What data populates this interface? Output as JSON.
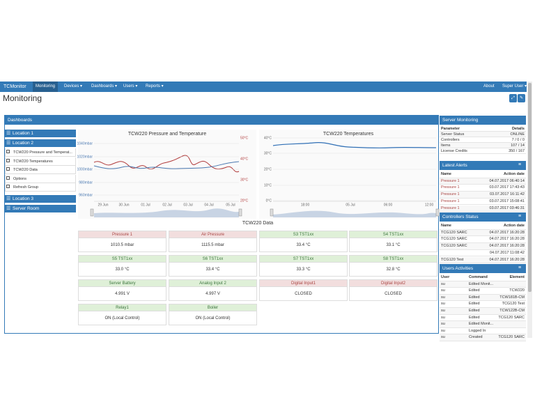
{
  "navbar": {
    "brand": "TCMonitor",
    "items": [
      "Monitoring",
      "Devices ▾",
      "Dashboards ▾",
      "Users ▾",
      "Reports ▾"
    ],
    "right": [
      "About",
      "Super User ▾"
    ]
  },
  "page_title": "Monitoring",
  "dashboards": {
    "title": "Dashboards",
    "sidebar": [
      {
        "label": "Location 1"
      },
      {
        "label": "Location 2",
        "children": [
          "TCW220 Pressure and Temperat...",
          "TCW220 Temperatures",
          "TCW220 Data",
          "Options",
          "Refresh Group"
        ]
      },
      {
        "label": "Location 3"
      },
      {
        "label": "Server Room"
      }
    ]
  },
  "charts": [
    {
      "title": "TCW220 Pressure and Temperature",
      "y_left": [
        "1040mbar",
        "1020mbar",
        "1000mbar",
        "980mbar",
        "960mbar"
      ],
      "y_right": [
        "50°C",
        "40°C",
        "30°C",
        "20°C"
      ],
      "x": [
        "29 Jun",
        "30 Jun",
        "01 Jul",
        "02 Jul",
        "03 Jul",
        "04 Jul",
        "05 Jul"
      ]
    },
    {
      "title": "TCW220 Temperatures",
      "y_left": [
        "40°C",
        "30°C",
        "20°C",
        "10°C",
        "0°C"
      ],
      "x": [
        "18:00",
        "05 Jul",
        "06:00",
        "12:00"
      ]
    }
  ],
  "data_title": "TCW220 Data",
  "tiles": [
    {
      "label": "Pressure 1",
      "value": "1010.5 mbar",
      "alarm": true
    },
    {
      "label": "Air Pressure",
      "value": "1115.5 mbar",
      "alarm": true
    },
    {
      "label": "S3 TST1xx",
      "value": "33.4 °C",
      "alarm": false
    },
    {
      "label": "S4 TST1xx",
      "value": "33.1 °C",
      "alarm": false
    },
    {
      "label": "S5 TST1xx",
      "value": "33.0 °C",
      "alarm": false
    },
    {
      "label": "S6 TST1xx",
      "value": "33.4 °C",
      "alarm": false
    },
    {
      "label": "S7 TST1xx",
      "value": "33.3 °C",
      "alarm": false
    },
    {
      "label": "S8 TST1xx",
      "value": "32.8 °C",
      "alarm": false
    },
    {
      "label": "Server Battery",
      "value": "4.991 V",
      "alarm": false
    },
    {
      "label": "Analog Input 2",
      "value": "4.997 V",
      "alarm": false
    },
    {
      "label": "Digital Input1",
      "value": "CLOSED",
      "alarm": true
    },
    {
      "label": "Digital Input2",
      "value": "CLOSED",
      "alarm": true
    },
    {
      "label": "Relay1",
      "value": "ON (Local Control)",
      "alarm": false
    },
    {
      "label": "Boiler",
      "value": "ON (Local Control)",
      "alarm": false
    }
  ],
  "server_monitoring": {
    "title": "Server Monitoring",
    "columns": [
      "Parameter",
      "Details"
    ],
    "rows": [
      [
        "Server Status",
        "ONLINE"
      ],
      [
        "Controllers",
        "7 / 0 / 0"
      ],
      [
        "Items",
        "107 / 14"
      ],
      [
        "License Credits",
        "350 / 167"
      ]
    ]
  },
  "latest_alerts": {
    "title": "Latest Alerts",
    "columns": [
      "Name",
      "Action date"
    ],
    "rows": [
      [
        "Pressure 1",
        "04.07.2017 06:40:14"
      ],
      [
        "Pressure 1",
        "03.07.2017 17:43:43"
      ],
      [
        "Pressure 1",
        "03.07.2017 16:11:42"
      ],
      [
        "Pressure 1",
        "03.07.2017 15:08:41"
      ],
      [
        "Pressure 1",
        "03.07.2017 03:46:31"
      ]
    ]
  },
  "controllers_status": {
    "title": "Controllers Status",
    "columns": [
      "Name",
      "Action date"
    ],
    "rows": [
      [
        "TCG120 SARC",
        "04.07.2017 16:20:28"
      ],
      [
        "TCG120 SARC",
        "04.07.2017 16:20:28"
      ],
      [
        "TCG120 SARC",
        "04.07.2017 16:20:28"
      ],
      [
        null,
        "04.07.2017 11:08:42"
      ],
      [
        "TCG120 Test",
        "04.07.2017 16:20:28"
      ]
    ]
  },
  "users_activities": {
    "title": "Users Activities",
    "columns": [
      "User",
      "Command",
      "Element"
    ],
    "rows": [
      [
        "su",
        "Edited Monit...",
        null
      ],
      [
        "su",
        "Edited",
        "TCW220"
      ],
      [
        "su",
        "Edited",
        "TCW181B-CM"
      ],
      [
        "su",
        "Edited",
        "TCG120 Test"
      ],
      [
        "su",
        "Edited",
        "TCW122B-CM"
      ],
      [
        "su",
        "Edited",
        "TCG120 SARC"
      ],
      [
        "su",
        "Edited Monit...",
        null
      ],
      [
        "su",
        "Logged In",
        null
      ],
      [
        "su",
        "Created",
        "TCG120 SARC"
      ]
    ]
  }
}
